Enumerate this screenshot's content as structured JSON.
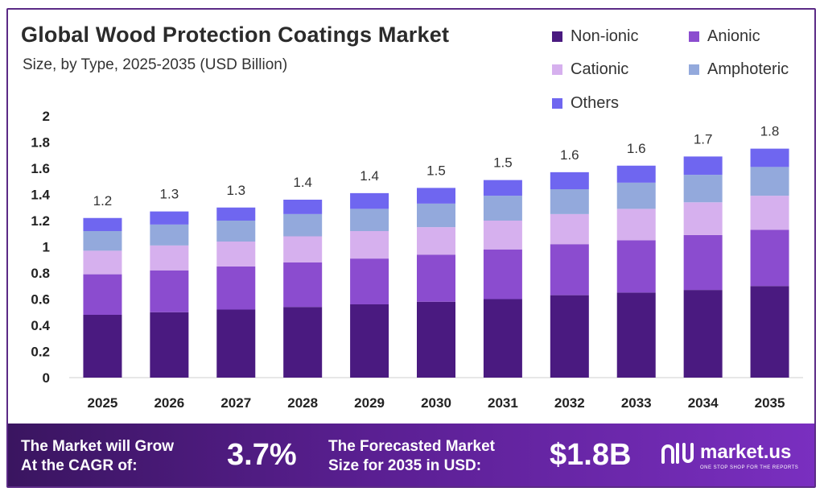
{
  "header": {
    "title": "Global Wood Protection Coatings Market",
    "subtitle": "Size, by Type, 2025-2035 (USD Billion)"
  },
  "legend": [
    {
      "label": "Non-ionic",
      "color": "#4a1a80"
    },
    {
      "label": "Anionic",
      "color": "#8b4ccf"
    },
    {
      "label": "Cationic",
      "color": "#d6b0ee"
    },
    {
      "label": "Amphoteric",
      "color": "#93a9dc"
    },
    {
      "label": "Others",
      "color": "#6f66f0"
    }
  ],
  "chart_data": {
    "type": "bar",
    "stacked": true,
    "categories": [
      "2025",
      "2026",
      "2027",
      "2028",
      "2029",
      "2030",
      "2031",
      "2032",
      "2033",
      "2034",
      "2035"
    ],
    "series": [
      {
        "name": "Non-ionic",
        "color": "#4a1a80",
        "values": [
          0.48,
          0.5,
          0.52,
          0.54,
          0.56,
          0.58,
          0.6,
          0.63,
          0.65,
          0.67,
          0.7
        ]
      },
      {
        "name": "Anionic",
        "color": "#8b4ccf",
        "values": [
          0.31,
          0.32,
          0.33,
          0.34,
          0.35,
          0.36,
          0.38,
          0.39,
          0.4,
          0.42,
          0.43
        ]
      },
      {
        "name": "Cationic",
        "color": "#d6b0ee",
        "values": [
          0.18,
          0.19,
          0.19,
          0.2,
          0.21,
          0.21,
          0.22,
          0.23,
          0.24,
          0.25,
          0.26
        ]
      },
      {
        "name": "Amphoteric",
        "color": "#93a9dc",
        "values": [
          0.15,
          0.16,
          0.16,
          0.17,
          0.17,
          0.18,
          0.19,
          0.19,
          0.2,
          0.21,
          0.22
        ]
      },
      {
        "name": "Others",
        "color": "#6f66f0",
        "values": [
          0.1,
          0.1,
          0.1,
          0.11,
          0.12,
          0.12,
          0.12,
          0.13,
          0.13,
          0.14,
          0.14
        ]
      }
    ],
    "totals_labels": [
      "1.2",
      "1.3",
      "1.3",
      "1.4",
      "1.4",
      "1.5",
      "1.5",
      "1.6",
      "1.6",
      "1.7",
      "1.8"
    ],
    "y_ticks": [
      "0",
      "0.2",
      "0.4",
      "0.6",
      "0.8",
      "1",
      "1.2",
      "1.4",
      "1.6",
      "1.8",
      "2"
    ],
    "ylim": [
      0,
      2
    ],
    "grid": false,
    "legend_position": "top-right"
  },
  "footer": {
    "cagr_label_line1": "The Market will Grow",
    "cagr_label_line2": "At the CAGR of:",
    "cagr_value": "3.7%",
    "forecast_label_line1": "The Forecasted Market",
    "forecast_label_line2": "Size for 2035 in USD:",
    "forecast_value": "$1.8B",
    "brand_name": "market.us",
    "brand_tagline": "ONE STOP SHOP FOR THE REPORTS"
  }
}
